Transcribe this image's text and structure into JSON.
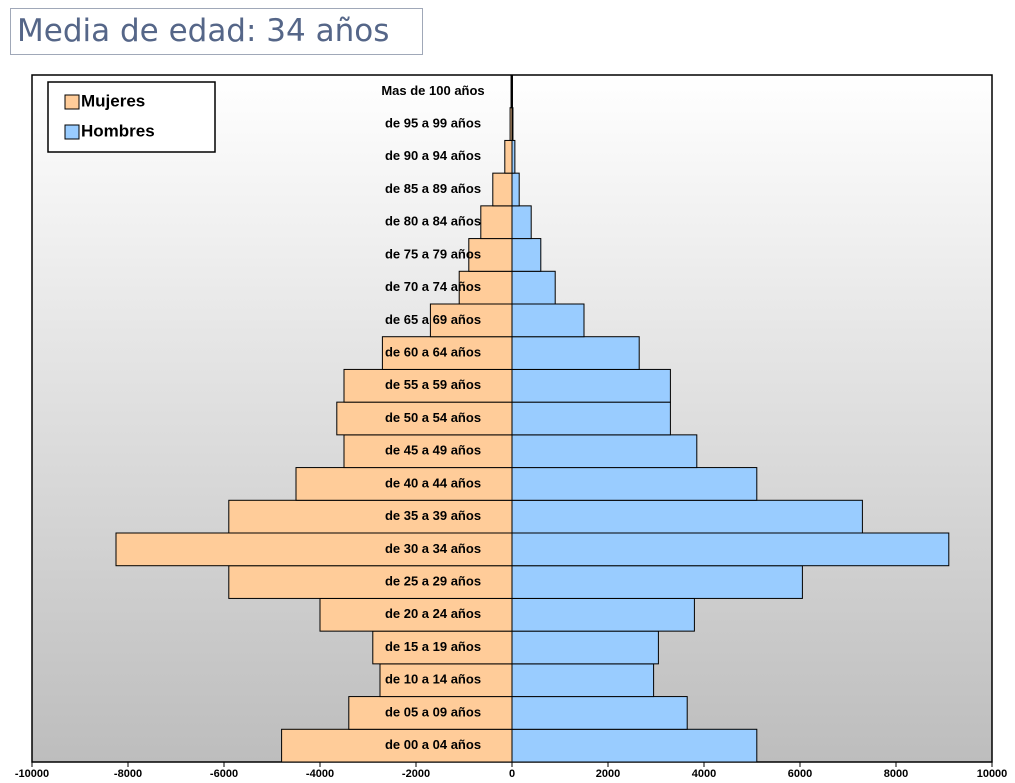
{
  "chart_data": {
    "type": "pyramid",
    "title": "Media de edad: 34 años",
    "categories": [
      "de 00 a 04 años",
      "de 05 a 09 años",
      "de 10 a 14 años",
      "de 15 a 19 años",
      "de 20 a 24 años",
      "de 25 a 29 años",
      "de 30 a 34 años",
      "de 35 a 39 años",
      "de 40 a 44 años",
      "de 45 a 49 años",
      "de 50 a 54 años",
      "de 55 a 59 años",
      "de 60 a 64 años",
      "de 65 a 69 años",
      "de 70 a 74 años",
      "de 75 a 79 años",
      "de 80 a 84 años",
      "de 85 a 89 años",
      "de 90 a 94 años",
      "de 95 a 99 años",
      "Mas de 100 años"
    ],
    "series": [
      {
        "name": "Mujeres",
        "color": "#ffcc99",
        "values": [
          -4800,
          -3400,
          -2750,
          -2900,
          -4000,
          -5900,
          -8250,
          -5900,
          -4500,
          -3500,
          -3650,
          -3500,
          -2700,
          -1700,
          -1100,
          -900,
          -650,
          -400,
          -150,
          -40,
          -20
        ]
      },
      {
        "name": "Hombres",
        "color": "#99ccff",
        "values": [
          5100,
          3650,
          2950,
          3050,
          3800,
          6050,
          9100,
          7300,
          5100,
          3850,
          3300,
          3300,
          2650,
          1500,
          900,
          600,
          400,
          150,
          60,
          20,
          10
        ]
      }
    ],
    "xlim": [
      -10000,
      10000
    ],
    "xticks": [
      -10000,
      -8000,
      -6000,
      -4000,
      -2000,
      0,
      2000,
      4000,
      6000,
      8000,
      10000
    ],
    "legend": "top-left"
  }
}
